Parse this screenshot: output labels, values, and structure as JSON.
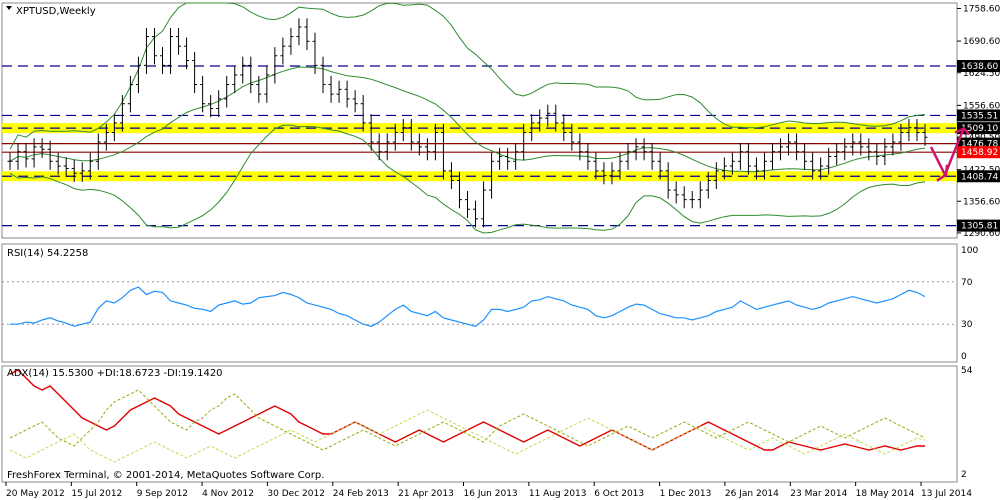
{
  "chart_data": [
    {
      "type": "ohlc",
      "title": "XPTUSD,Weekly",
      "ylim": [
        1280,
        1770
      ],
      "y_ticks": [
        "1758.60",
        "1690.60",
        "1624.50",
        "1556.60",
        "1490.50",
        "1422.50",
        "1356.60",
        "1290.60"
      ],
      "x_ticks": [
        "20 May 2012",
        "15 Jul 2012",
        "9 Sep 2012",
        "4 Nov 2012",
        "30 Dec 2012",
        "24 Feb 2013",
        "21 Apr 2013",
        "16 Jun 2013",
        "11 Aug 2013",
        "6 Oct 2013",
        "1 Dec 2013",
        "26 Jan 2014",
        "23 Mar 2014",
        "18 May 2014",
        "13 Jul 2014"
      ],
      "series_close": [
        1440,
        1460,
        1445,
        1470,
        1465,
        1440,
        1430,
        1425,
        1415,
        1420,
        1440,
        1480,
        1500,
        1520,
        1560,
        1600,
        1640,
        1700,
        1660,
        1640,
        1700,
        1680,
        1650,
        1600,
        1560,
        1550,
        1570,
        1600,
        1620,
        1640,
        1600,
        1580,
        1620,
        1660,
        1680,
        1700,
        1720,
        1690,
        1640,
        1600,
        1580,
        1590,
        1570,
        1560,
        1520,
        1480,
        1460,
        1480,
        1500,
        1510,
        1480,
        1470,
        1460,
        1500,
        1420,
        1400,
        1360,
        1340,
        1320,
        1380,
        1440,
        1450,
        1440,
        1460,
        1500,
        1520,
        1530,
        1540,
        1520,
        1500,
        1480,
        1460,
        1440,
        1420,
        1410,
        1420,
        1440,
        1460,
        1470,
        1460,
        1440,
        1420,
        1380,
        1370,
        1360,
        1360,
        1380,
        1400,
        1420,
        1430,
        1440,
        1460,
        1430,
        1420,
        1440,
        1460,
        1470,
        1480,
        1460,
        1440,
        1420,
        1430,
        1450,
        1460,
        1470,
        1480,
        1470,
        1460,
        1450,
        1470,
        1480,
        1500,
        1510,
        1500,
        1490
      ],
      "horizontal_levels": [
        {
          "value": 1638.6,
          "label": "1638.60",
          "style": "dashed",
          "color": "#00008b"
        },
        {
          "value": 1535.51,
          "label": "1535.51",
          "style": "dashed",
          "color": "#00008b"
        },
        {
          "value": 1509.1,
          "label": "1509.10",
          "style": "dashed",
          "color": "#00008b",
          "highlight": "#ffff00"
        },
        {
          "value": 1476.78,
          "label": "1476.78",
          "style": "solid",
          "color": "#8b0000"
        },
        {
          "value": 1458.92,
          "label": "1458.92",
          "style": "solid",
          "color": "#8b0000",
          "label_bg": "#ff0000"
        },
        {
          "value": 1408.74,
          "label": "1408.74",
          "style": "dashed",
          "color": "#00008b",
          "highlight": "#ffff00"
        },
        {
          "value": 1305.81,
          "label": "1305.81",
          "style": "dashed",
          "color": "#00008b"
        }
      ],
      "bollinger": true,
      "annotation_arrows": [
        "down-arrow",
        "up-arrow"
      ],
      "colors": {
        "bars": "#000000",
        "bands": "#2e8b2e",
        "highlight": "#ffff00",
        "arrow": "#d0136f"
      }
    },
    {
      "type": "line",
      "title": "RSI(14) 54.2258",
      "ylim": [
        0,
        100
      ],
      "y_ticks": [
        "100",
        "70",
        "30",
        "0"
      ],
      "levels": [
        70,
        30
      ],
      "values": [
        30,
        30,
        32,
        31,
        34,
        36,
        33,
        31,
        28,
        30,
        32,
        45,
        52,
        50,
        55,
        62,
        65,
        58,
        61,
        60,
        52,
        50,
        48,
        45,
        44,
        42,
        48,
        50,
        52,
        49,
        50,
        55,
        56,
        57,
        60,
        58,
        55,
        50,
        48,
        46,
        44,
        40,
        38,
        34,
        30,
        28,
        32,
        38,
        44,
        48,
        42,
        40,
        38,
        42,
        36,
        34,
        32,
        30,
        28,
        34,
        44,
        44,
        42,
        44,
        46,
        52,
        53,
        56,
        54,
        52,
        48,
        46,
        44,
        38,
        36,
        38,
        42,
        46,
        49,
        48,
        44,
        40,
        38,
        36,
        36,
        34,
        36,
        38,
        42,
        44,
        46,
        52,
        48,
        44,
        46,
        48,
        50,
        52,
        48,
        46,
        44,
        46,
        50,
        52,
        54,
        56,
        54,
        52,
        50,
        52,
        54,
        58,
        62,
        60,
        56
      ],
      "colors": {
        "line": "#1e90ff"
      }
    },
    {
      "type": "line",
      "title": "ADX(14) 15.5300 +DI:18.6723 -DI:19.1420",
      "ylim": [
        2,
        54
      ],
      "y_ticks": [
        "54",
        "2"
      ],
      "series": [
        {
          "name": "ADX(14)",
          "values": [
            52,
            54,
            50,
            46,
            44,
            46,
            42,
            38,
            34,
            30,
            28,
            26,
            24,
            26,
            30,
            34,
            36,
            38,
            40,
            38,
            36,
            32,
            30,
            28,
            26,
            24,
            22,
            24,
            26,
            28,
            30,
            32,
            34,
            36,
            34,
            32,
            28,
            26,
            24,
            22,
            22,
            24,
            26,
            28,
            26,
            24,
            22,
            20,
            18,
            20,
            22,
            24,
            22,
            20,
            18,
            20,
            22,
            24,
            26,
            28,
            26,
            24,
            22,
            20,
            18,
            20,
            22,
            24,
            22,
            20,
            18,
            16,
            18,
            20,
            22,
            24,
            22,
            20,
            18,
            16,
            14,
            16,
            18,
            20,
            22,
            24,
            26,
            28,
            26,
            24,
            22,
            20,
            18,
            16,
            14,
            14,
            16,
            18,
            17,
            16,
            15,
            14,
            15,
            16,
            17,
            16,
            15,
            14,
            15,
            16,
            15,
            14,
            15,
            16,
            16
          ]
        },
        {
          "name": "+DI",
          "values": [
            20,
            22,
            24,
            26,
            28,
            24,
            20,
            18,
            16,
            20,
            24,
            28,
            34,
            38,
            40,
            42,
            44,
            40,
            36,
            32,
            28,
            26,
            24,
            28,
            30,
            34,
            36,
            40,
            42,
            38,
            34,
            30,
            28,
            26,
            24,
            22,
            20,
            18,
            16,
            14,
            16,
            18,
            20,
            22,
            24,
            22,
            20,
            18,
            16,
            18,
            20,
            22,
            24,
            26,
            28,
            26,
            24,
            22,
            20,
            18,
            22,
            26,
            28,
            30,
            32,
            30,
            28,
            26,
            24,
            22,
            20,
            18,
            16,
            18,
            20,
            22,
            24,
            26,
            24,
            22,
            20,
            22,
            24,
            26,
            28,
            26,
            24,
            22,
            20,
            22,
            24,
            26,
            28,
            26,
            24,
            22,
            20,
            18,
            20,
            22,
            24,
            26,
            24,
            22,
            20,
            22,
            24,
            26,
            28,
            30,
            28,
            26,
            24,
            22,
            20
          ]
        },
        {
          "name": "-DI",
          "values": [
            14,
            12,
            10,
            12,
            14,
            16,
            18,
            20,
            22,
            18,
            14,
            12,
            10,
            8,
            10,
            12,
            14,
            16,
            18,
            16,
            14,
            12,
            10,
            12,
            14,
            16,
            14,
            12,
            10,
            12,
            14,
            16,
            18,
            20,
            22,
            24,
            22,
            20,
            18,
            20,
            22,
            24,
            26,
            28,
            26,
            24,
            22,
            24,
            26,
            28,
            30,
            32,
            34,
            32,
            30,
            28,
            26,
            24,
            22,
            20,
            18,
            16,
            14,
            12,
            14,
            16,
            18,
            20,
            22,
            24,
            26,
            28,
            30,
            28,
            26,
            24,
            22,
            20,
            18,
            16,
            14,
            16,
            18,
            20,
            22,
            24,
            26,
            24,
            22,
            20,
            18,
            16,
            14,
            16,
            18,
            20,
            18,
            16,
            14,
            12,
            14,
            16,
            18,
            20,
            22,
            20,
            18,
            16,
            14,
            12,
            14,
            16,
            18,
            20,
            19
          ]
        }
      ],
      "colors": {
        "adx": "#e00000",
        "plus_di": "#9aaa10",
        "minus_di": "#c8d850"
      }
    }
  ],
  "footer": {
    "copyright": "FreshForex Terminal, © 2001-2014, MetaQuotes Software Corp."
  }
}
